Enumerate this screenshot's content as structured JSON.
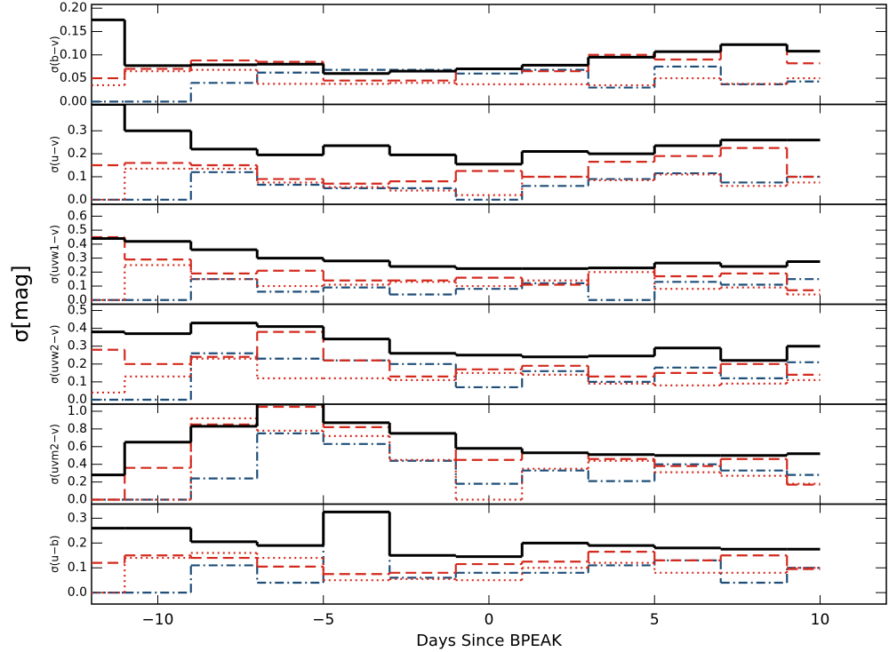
{
  "ylabel": "σ[mag]",
  "x_axis": {
    "label": "Days Since BPEAK",
    "xlim": [
      -12,
      12
    ],
    "xticks": [
      {
        "value": -10,
        "label": "−10"
      },
      {
        "value": -5,
        "label": "−5"
      },
      0,
      5,
      10
    ],
    "bins": [
      -12,
      -11,
      -9,
      -7,
      -5,
      -3,
      -1,
      1,
      3,
      5,
      7,
      9,
      10
    ]
  },
  "chart_data": [
    {
      "type": "step",
      "ylabel": "σ(b−v)",
      "ylim": [
        -0.006,
        0.208
      ],
      "yticks": [
        {
          "value": 0,
          "label": "0.00"
        },
        {
          "value": 0.05,
          "label": "0.05"
        },
        {
          "value": 0.1,
          "label": "0.10"
        },
        {
          "value": 0.15,
          "label": "0.15"
        },
        {
          "value": 0.2,
          "label": "0.20"
        }
      ],
      "series": [
        {
          "color": "#000000",
          "style": "solid",
          "values": [
            0.175,
            0.077,
            0.079,
            0.08,
            0.06,
            0.065,
            0.07,
            0.078,
            0.095,
            0.107,
            0.122,
            0.108
          ]
        },
        {
          "color": "#d42a1e",
          "style": "dashed",
          "values": [
            0.05,
            0.07,
            0.088,
            0.085,
            0.045,
            0.045,
            0.07,
            0.065,
            0.1,
            0.09,
            0.122,
            0.082
          ]
        },
        {
          "color": "#d42a1e",
          "style": "dotted",
          "values": [
            0.035,
            0.065,
            0.068,
            0.038,
            0.038,
            0.04,
            0.037,
            0.037,
            0.035,
            0.05,
            0.038,
            0.05
          ]
        },
        {
          "color": "#1f4e79",
          "style": "dashdot",
          "values": [
            0,
            0,
            0.04,
            0.062,
            0.068,
            0.068,
            0.06,
            0.068,
            0.03,
            0.075,
            0.037,
            0.043
          ]
        }
      ]
    },
    {
      "type": "step",
      "ylabel": "σ(u−v)",
      "ylim": [
        -0.02,
        0.415
      ],
      "yticks": [
        {
          "value": 0,
          "label": "0.0"
        },
        0.1,
        0.2,
        0.3
      ],
      "series": [
        {
          "color": "#000000",
          "style": "solid",
          "values": [
            0.415,
            0.3,
            0.22,
            0.195,
            0.235,
            0.195,
            0.155,
            0.21,
            0.2,
            0.235,
            0.26,
            0.26
          ]
        },
        {
          "color": "#d42a1e",
          "style": "dashed",
          "values": [
            0.15,
            0.16,
            0.15,
            0.09,
            0.07,
            0.08,
            0.125,
            0.1,
            0.165,
            0.19,
            0.225,
            0.1
          ]
        },
        {
          "color": "#d42a1e",
          "style": "dotted",
          "values": [
            0,
            0.135,
            0.135,
            0.075,
            0.055,
            0.04,
            0.02,
            0.1,
            0.085,
            0.11,
            0.06,
            0.075
          ]
        },
        {
          "color": "#1f4e79",
          "style": "dashdot",
          "values": [
            0,
            0,
            0.12,
            0.065,
            0.05,
            0.05,
            0,
            0.06,
            0.09,
            0.115,
            0.075,
            0.1
          ]
        }
      ]
    },
    {
      "type": "step",
      "ylabel": "σ(uvw1−v)",
      "ylim": [
        -0.03,
        0.685
      ],
      "yticks": [
        {
          "value": 0,
          "label": "0.0"
        },
        0.1,
        0.2,
        0.3,
        0.4,
        0.5,
        0.6
      ],
      "series": [
        {
          "color": "#000000",
          "style": "solid",
          "values": [
            0.44,
            0.42,
            0.36,
            0.3,
            0.28,
            0.24,
            0.225,
            0.225,
            0.23,
            0.265,
            0.24,
            0.275
          ]
        },
        {
          "color": "#d42a1e",
          "style": "dashed",
          "values": [
            0.45,
            0.29,
            0.19,
            0.21,
            0.14,
            0.14,
            0.16,
            0.11,
            0.23,
            0.17,
            0.19,
            0.07
          ]
        },
        {
          "color": "#d42a1e",
          "style": "dotted",
          "values": [
            0,
            0.25,
            0.15,
            0.1,
            0.11,
            0.13,
            0.1,
            0.14,
            0.2,
            0.08,
            0.09,
            0.04
          ]
        },
        {
          "color": "#1f4e79",
          "style": "dashdot",
          "values": [
            0,
            0,
            0.15,
            0.06,
            0.09,
            0.04,
            0.08,
            0.12,
            0,
            0.13,
            0.11,
            0.15
          ]
        }
      ]
    },
    {
      "type": "step",
      "ylabel": "σ(uvw2−v)",
      "ylim": [
        -0.025,
        0.535
      ],
      "yticks": [
        {
          "value": 0,
          "label": "0.0"
        },
        0.1,
        0.2,
        0.3,
        0.4,
        0.5
      ],
      "series": [
        {
          "color": "#000000",
          "style": "solid",
          "values": [
            0.38,
            0.37,
            0.43,
            0.41,
            0.34,
            0.26,
            0.25,
            0.24,
            0.245,
            0.29,
            0.22,
            0.3
          ]
        },
        {
          "color": "#d42a1e",
          "style": "dashed",
          "values": [
            0.28,
            0.2,
            0.24,
            0.38,
            0.22,
            0.13,
            0.17,
            0.19,
            0.13,
            0.15,
            0.2,
            0.14
          ]
        },
        {
          "color": "#d42a1e",
          "style": "dotted",
          "values": [
            0.04,
            0.13,
            0.23,
            0.12,
            0.12,
            0.11,
            0.15,
            0.14,
            0.09,
            0.08,
            0.09,
            0.11
          ]
        },
        {
          "color": "#1f4e79",
          "style": "dashdot",
          "values": [
            0,
            0,
            0.26,
            0.23,
            0.22,
            0.2,
            0.07,
            0.16,
            0.1,
            0.18,
            0.12,
            0.21
          ]
        }
      ]
    },
    {
      "type": "step",
      "ylabel": "σ(uvm2−v)",
      "ylim": [
        -0.05,
        1.08
      ],
      "yticks": [
        {
          "value": 0,
          "label": "0.0"
        },
        0.2,
        0.4,
        0.6,
        0.8,
        {
          "value": 1,
          "label": "1.0"
        }
      ],
      "series": [
        {
          "color": "#000000",
          "style": "solid",
          "values": [
            0.28,
            0.65,
            0.83,
            1.08,
            0.87,
            0.75,
            0.58,
            0.53,
            0.51,
            0.5,
            0.5,
            0.52
          ]
        },
        {
          "color": "#d42a1e",
          "style": "dashed",
          "values": [
            0,
            0.36,
            0.85,
            1.05,
            0.82,
            0.75,
            0.45,
            0.53,
            0.46,
            0.38,
            0.46,
            0.17
          ]
        },
        {
          "color": "#d42a1e",
          "style": "dotted",
          "values": [
            0,
            0,
            0.92,
            0.78,
            0.72,
            0.45,
            0,
            0.35,
            0.44,
            0.31,
            0.27,
            0.18
          ]
        },
        {
          "color": "#1f4e79",
          "style": "dashdot",
          "values": [
            0,
            0,
            0.24,
            0.75,
            0.63,
            0.44,
            0.18,
            0.33,
            0.21,
            0.4,
            0.33,
            0.28
          ]
        }
      ]
    },
    {
      "type": "step",
      "ylabel": "σ(u−b)",
      "ylim": [
        -0.046,
        0.357
      ],
      "yticks": [
        {
          "value": 0,
          "label": "0.0"
        },
        0.1,
        0.2,
        0.3
      ],
      "series": [
        {
          "color": "#000000",
          "style": "solid",
          "values": [
            0.26,
            0.26,
            0.205,
            0.19,
            0.325,
            0.15,
            0.145,
            0.2,
            0.19,
            0.18,
            0.175,
            0.175
          ]
        },
        {
          "color": "#d42a1e",
          "style": "dashed",
          "values": [
            0.12,
            0.15,
            0.14,
            0.105,
            0.075,
            0.08,
            0.115,
            0.125,
            0.165,
            0.13,
            0.15,
            0.095
          ]
        },
        {
          "color": "#d42a1e",
          "style": "dotted",
          "values": [
            0,
            0.14,
            0.16,
            0.14,
            0.05,
            0.055,
            0.05,
            0.1,
            0.12,
            0.08,
            0.08,
            0.1
          ]
        },
        {
          "color": "#1f4e79",
          "style": "dashdot",
          "values": [
            0,
            0,
            0.11,
            0.04,
            0.325,
            0.06,
            0.08,
            0.08,
            0.11,
            0.13,
            0.04,
            0.1
          ]
        }
      ]
    }
  ]
}
